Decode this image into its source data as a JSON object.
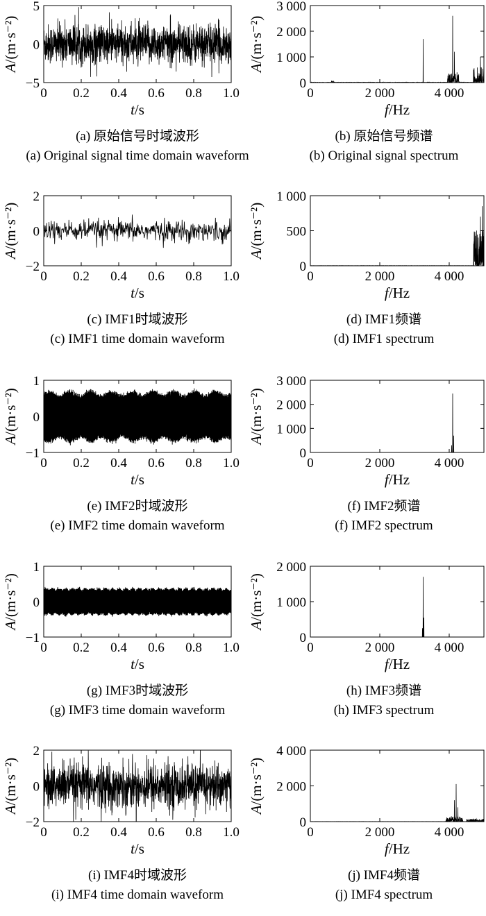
{
  "chart_data": [
    {
      "id": "a",
      "type": "line",
      "caption_cn": "(a) 原始信号时域波形",
      "caption_en": "(a) Original signal time domain waveform",
      "ylabel": "A/(m·s⁻²)",
      "xlabel": "t/s",
      "xlim": [
        0,
        1
      ],
      "ylim": [
        -5,
        5
      ],
      "xticks": [
        0,
        0.2,
        0.4,
        0.6,
        0.8,
        1.0
      ],
      "xtick_labels": [
        "0",
        "0.2",
        "0.4",
        "0.6",
        "0.8",
        "1.0"
      ],
      "yticks": [
        -5,
        0,
        5
      ],
      "ytick_labels": [
        "−5",
        "0",
        "5"
      ],
      "signal": {
        "kind": "noise",
        "envelope": [
          [
            0,
            3.0
          ],
          [
            1,
            3.0
          ]
        ]
      }
    },
    {
      "id": "b",
      "type": "line",
      "caption_cn": "(b) 原始信号频谱",
      "caption_en": "(b) Original signal spectrum",
      "ylabel": "A/(m·s⁻²)",
      "xlabel": "f/Hz",
      "xlim": [
        0,
        5000
      ],
      "ylim": [
        0,
        3000
      ],
      "xticks": [
        0,
        2000,
        4000
      ],
      "xtick_labels": [
        "0",
        "2 000",
        "4 000"
      ],
      "yticks": [
        0,
        1000,
        2000,
        3000
      ],
      "ytick_labels": [
        "0",
        "1 000",
        "2 000",
        "3 000"
      ],
      "signal": {
        "kind": "spectrum",
        "floor": 15,
        "peaks": [
          [
            3250,
            1700
          ],
          [
            4100,
            2600
          ],
          [
            4150,
            1200
          ],
          [
            4900,
            1000
          ],
          [
            5000,
            1300
          ]
        ],
        "bands": [
          [
            3950,
            4300,
            400
          ],
          [
            4700,
            5000,
            600
          ],
          [
            600,
            700,
            60
          ]
        ]
      }
    },
    {
      "id": "c",
      "type": "line",
      "caption_cn": "(c) IMF1时域波形",
      "caption_en": "(c) IMF1 time domain waveform",
      "ylabel": "A/(m·s⁻²)",
      "xlabel": "t/s",
      "xlim": [
        0,
        1
      ],
      "ylim": [
        -2,
        2
      ],
      "xticks": [
        0,
        0.2,
        0.4,
        0.6,
        0.8,
        1.0
      ],
      "xtick_labels": [
        "0",
        "0.2",
        "0.4",
        "0.6",
        "0.8",
        "1.0"
      ],
      "yticks": [
        -2,
        0,
        2
      ],
      "ytick_labels": [
        "−2",
        "0",
        "2"
      ],
      "signal": {
        "kind": "noise",
        "envelope": [
          [
            0,
            0.7
          ],
          [
            1,
            0.7
          ]
        ],
        "samples": 500
      }
    },
    {
      "id": "d",
      "type": "line",
      "caption_cn": "(d) IMF1频谱",
      "caption_en": "(d) IMF1 spectrum",
      "ylabel": "A/(m·s⁻²)",
      "xlabel": "f/Hz",
      "xlim": [
        0,
        5000
      ],
      "ylim": [
        0,
        1000
      ],
      "xticks": [
        0,
        2000,
        4000
      ],
      "xtick_labels": [
        "0",
        "2 000",
        "4 000"
      ],
      "yticks": [
        0,
        500,
        1000
      ],
      "ytick_labels": [
        "0",
        "500",
        "1 000"
      ],
      "signal": {
        "kind": "spectrum",
        "floor": 3,
        "peaks": [
          [
            4950,
            850
          ],
          [
            5000,
            900
          ],
          [
            4900,
            700
          ]
        ],
        "bands": [
          [
            4700,
            5000,
            500
          ]
        ]
      }
    },
    {
      "id": "e",
      "type": "line",
      "caption_cn": "(e) IMF2时域波形",
      "caption_en": "(e) IMF2 time domain waveform",
      "ylabel": "A/(m·s⁻²)",
      "xlabel": "t/s",
      "xlim": [
        0,
        1
      ],
      "ylim": [
        -1,
        1
      ],
      "xticks": [
        0,
        0.2,
        0.4,
        0.6,
        0.8,
        1.0
      ],
      "xtick_labels": [
        "0",
        "0.2",
        "0.4",
        "0.6",
        "0.8",
        "1.0"
      ],
      "yticks": [
        -1,
        0,
        1
      ],
      "ytick_labels": [
        "−1",
        "0",
        "1"
      ],
      "signal": {
        "kind": "dense",
        "amp": 0.65,
        "mod": 0.1,
        "modfreq": 9
      }
    },
    {
      "id": "f",
      "type": "line",
      "caption_cn": "(f) IMF2频谱",
      "caption_en": "(f) IMF2 spectrum",
      "ylabel": "A/(m·s⁻²)",
      "xlabel": "f/Hz",
      "xlim": [
        0,
        5000
      ],
      "ylim": [
        0,
        3000
      ],
      "xticks": [
        0,
        2000,
        4000
      ],
      "xtick_labels": [
        "0",
        "2 000",
        "4 000"
      ],
      "yticks": [
        0,
        1000,
        2000,
        3000
      ],
      "ytick_labels": [
        "0",
        "1 000",
        "2 000",
        "3 000"
      ],
      "signal": {
        "kind": "spectrum",
        "floor": 2,
        "peaks": [
          [
            4100,
            2450
          ],
          [
            4130,
            700
          ],
          [
            4070,
            300
          ]
        ],
        "bands": []
      }
    },
    {
      "id": "g",
      "type": "line",
      "caption_cn": "(g) IMF3时域波形",
      "caption_en": "(g) IMF3 time domain waveform",
      "ylabel": "A/(m·s⁻²)",
      "xlabel": "t/s",
      "xlim": [
        0,
        1
      ],
      "ylim": [
        -1,
        1
      ],
      "xticks": [
        0,
        0.2,
        0.4,
        0.6,
        0.8,
        1.0
      ],
      "xtick_labels": [
        "0",
        "0.2",
        "0.4",
        "0.6",
        "0.8",
        "1.0"
      ],
      "yticks": [
        -1,
        0,
        1
      ],
      "ytick_labels": [
        "−1",
        "0",
        "1"
      ],
      "signal": {
        "kind": "dense",
        "amp": 0.36,
        "mod": 0.08,
        "modfreq": 28
      }
    },
    {
      "id": "h",
      "type": "line",
      "caption_cn": "(h) IMF3频谱",
      "caption_en": "(h) IMF3 spectrum",
      "ylabel": "A/(m·s⁻²)",
      "xlabel": "f/Hz",
      "xlim": [
        0,
        5000
      ],
      "ylim": [
        0,
        2000
      ],
      "xticks": [
        0,
        2000,
        4000
      ],
      "xtick_labels": [
        "0",
        "2 000",
        "4 000"
      ],
      "yticks": [
        0,
        1000,
        2000
      ],
      "ytick_labels": [
        "0",
        "1 000",
        "2 000"
      ],
      "signal": {
        "kind": "spectrum",
        "floor": 2,
        "peaks": [
          [
            3250,
            1700
          ],
          [
            3270,
            550
          ],
          [
            3230,
            250
          ]
        ],
        "bands": []
      }
    },
    {
      "id": "i",
      "type": "line",
      "caption_cn": "(i) IMF4时域波形",
      "caption_en": "(i) IMF4 time domain waveform",
      "ylabel": "A/(m·s⁻²)",
      "xlabel": "t/s",
      "xlim": [
        0,
        1
      ],
      "ylim": [
        -2,
        2
      ],
      "xticks": [
        0,
        0.2,
        0.4,
        0.6,
        0.8,
        1.0
      ],
      "xtick_labels": [
        "0",
        "0.2",
        "0.4",
        "0.6",
        "0.8",
        "1.0"
      ],
      "yticks": [
        -2,
        0,
        2
      ],
      "ytick_labels": [
        "−2",
        "0",
        "2"
      ],
      "signal": {
        "kind": "noise",
        "envelope": [
          [
            0,
            1.5
          ],
          [
            1,
            1.5
          ]
        ],
        "samples": 1200
      }
    },
    {
      "id": "j",
      "type": "line",
      "caption_cn": "(j) IMF4频谱",
      "caption_en": "(j) IMF4 spectrum",
      "ylabel": "A/(m·s⁻²)",
      "xlabel": "f/Hz",
      "xlim": [
        0,
        5000
      ],
      "ylim": [
        0,
        4000
      ],
      "xticks": [
        0,
        2000,
        4000
      ],
      "xtick_labels": [
        "0",
        "2 000",
        "4 000"
      ],
      "yticks": [
        0,
        2000,
        4000
      ],
      "ytick_labels": [
        "0",
        "2 000",
        "4 000"
      ],
      "signal": {
        "kind": "spectrum",
        "floor": 8,
        "peaks": [
          [
            4200,
            2100
          ],
          [
            4150,
            1200
          ],
          [
            4250,
            800
          ]
        ],
        "bands": [
          [
            3900,
            4400,
            300
          ],
          [
            4500,
            5000,
            150
          ]
        ]
      }
    }
  ]
}
